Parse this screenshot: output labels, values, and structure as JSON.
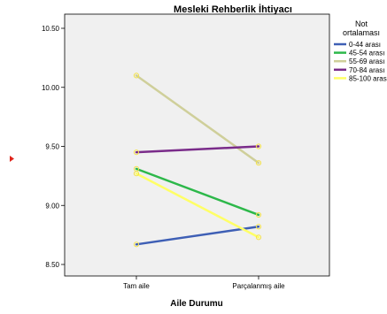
{
  "chart_data": {
    "type": "line",
    "title": "Mesleki Rehberlik İhtiyacı",
    "xlabel": "Aile Durumu",
    "ylabel": "",
    "categories": [
      "Tam aile",
      "Parçalanmış aile"
    ],
    "ylim": [
      8.45,
      10.6
    ],
    "yticks": [
      "8.50",
      "9.00",
      "9.50",
      "10.00",
      "10.50"
    ],
    "grid": false,
    "legend_position": "right",
    "legend_title": [
      "Not",
      "ortalaması"
    ],
    "series": [
      {
        "name": "0-44 arası",
        "color": "#3e5fb5",
        "values": [
          8.67,
          8.82
        ]
      },
      {
        "name": "45-54 arası",
        "color": "#2db84a",
        "values": [
          9.31,
          8.92
        ]
      },
      {
        "name": "55-69 arası",
        "color": "#cfcf9a",
        "values": [
          10.1,
          9.36
        ]
      },
      {
        "name": "70-84 arası",
        "color": "#7a2c8a",
        "values": [
          9.45,
          9.5
        ]
      },
      {
        "name": "85-100 arası",
        "color": "#ffff66",
        "values": [
          9.27,
          8.73
        ]
      }
    ],
    "plot_background": "#f0f0f0",
    "marker_color": "#f4e24a"
  }
}
